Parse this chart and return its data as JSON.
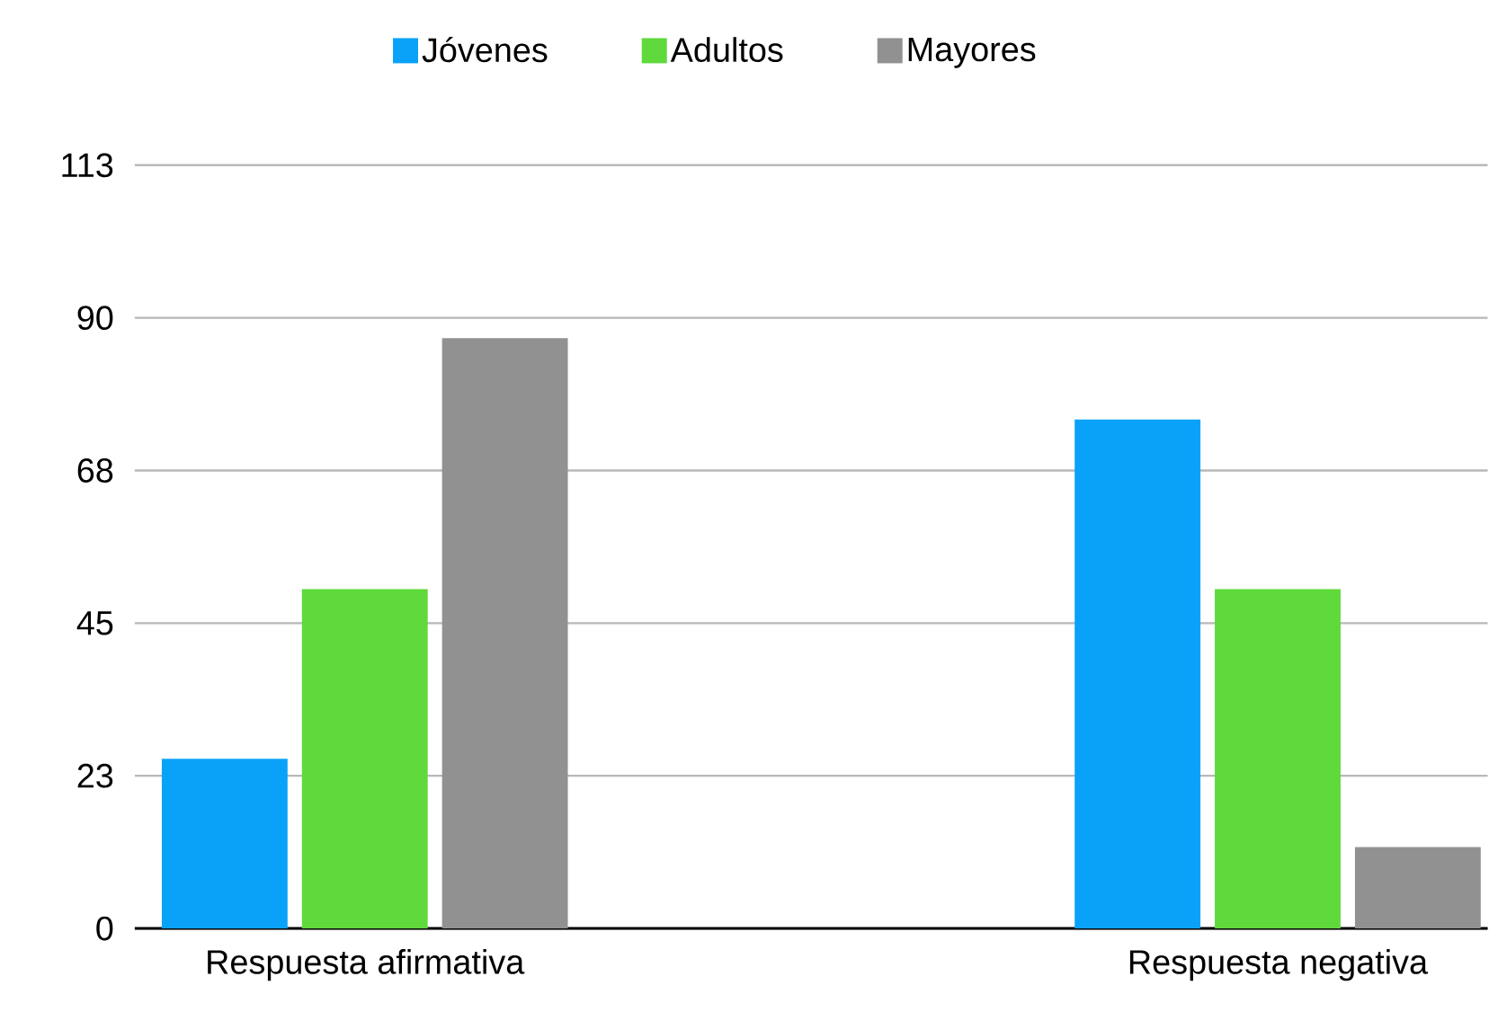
{
  "chart_data": {
    "type": "bar",
    "categories": [
      "Respuesta afirmativa",
      "Respuesta negativa"
    ],
    "series": [
      {
        "name": "Jóvenes",
        "color": "#0aa2f8",
        "values": [
          25,
          75
        ]
      },
      {
        "name": "Adultos",
        "color": "#5fd93c",
        "values": [
          50,
          50
        ]
      },
      {
        "name": "Mayores",
        "color": "#919191",
        "values": [
          87,
          12
        ]
      }
    ],
    "ylim": [
      0,
      112.5
    ],
    "yticks": [
      0,
      {
        "value": 22.5,
        "label": "23"
      },
      45,
      {
        "value": 67.5,
        "label": "68"
      },
      90,
      {
        "value": 112.5,
        "label": "113"
      }
    ],
    "grid": "y",
    "legend": "top"
  }
}
